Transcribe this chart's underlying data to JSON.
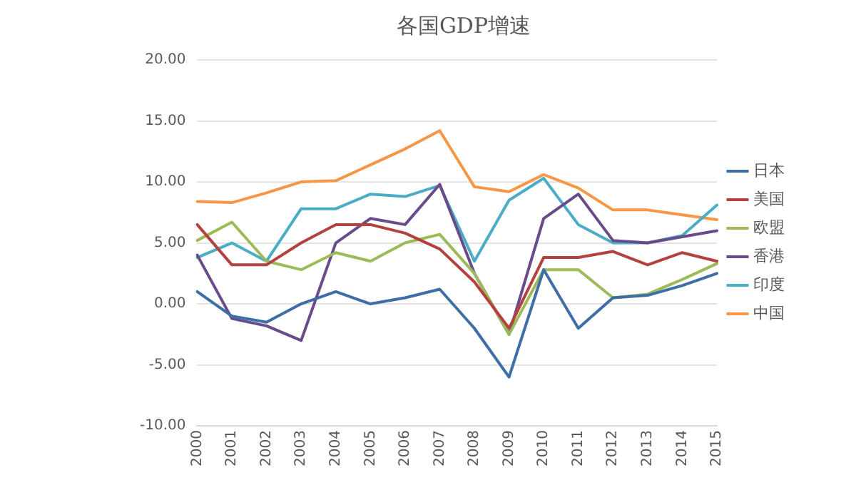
{
  "chart_data": {
    "type": "line",
    "title": "各国GDP增速",
    "categories": [
      "2000",
      "2001",
      "2002",
      "2003",
      "2004",
      "2005",
      "2006",
      "2007",
      "2008",
      "2009",
      "2010",
      "2011",
      "2012",
      "2013",
      "2014",
      "2015"
    ],
    "series": [
      {
        "name": "日本",
        "color": "#3e6ea6",
        "values": [
          1,
          -1,
          -1.5,
          0,
          1,
          0,
          0.5,
          1.2,
          -2,
          -6,
          2.8,
          -2,
          0.5,
          0.7,
          1.5,
          2.5
        ]
      },
      {
        "name": "美国",
        "color": "#b5413e",
        "values": [
          6.5,
          3.2,
          3.2,
          5,
          6.5,
          6.5,
          5.8,
          4.5,
          1.8,
          -2,
          3.8,
          3.8,
          4.3,
          3.2,
          4.2,
          3.5
        ]
      },
      {
        "name": "欧盟",
        "color": "#9bbb59",
        "values": [
          5.2,
          6.7,
          3.5,
          2.8,
          4.2,
          3.5,
          5,
          5.7,
          2.5,
          -2.5,
          2.8,
          2.8,
          0.5,
          0.8,
          2,
          3.3
        ]
      },
      {
        "name": "香港",
        "color": "#6a4a8a",
        "values": [
          4,
          -1.2,
          -1.8,
          -3,
          5,
          7,
          6.5,
          9.8,
          2.5,
          -2.5,
          7,
          9,
          5.2,
          5,
          5.5,
          6
        ]
      },
      {
        "name": "印度",
        "color": "#4bacc6",
        "values": [
          3.8,
          5,
          3.5,
          7.8,
          7.8,
          9,
          8.8,
          9.7,
          3.5,
          8.5,
          10.3,
          6.5,
          5,
          5,
          5.6,
          8.1
        ]
      },
      {
        "name": "中国",
        "color": "#f79646",
        "values": [
          8.4,
          8.3,
          9.1,
          10,
          10.1,
          11.4,
          12.7,
          14.2,
          9.6,
          9.2,
          10.6,
          9.5,
          7.7,
          7.7,
          7.3,
          6.9
        ]
      }
    ],
    "ylim": [
      -10,
      20
    ],
    "yticks": [
      {
        "value": -10,
        "label": "-10.00"
      },
      {
        "value": -5,
        "label": "-5.00"
      },
      {
        "value": 0,
        "label": "0.00"
      },
      {
        "value": 5,
        "label": "5.00"
      },
      {
        "value": 10,
        "label": "10.00"
      },
      {
        "value": 15,
        "label": "15.00"
      },
      {
        "value": 20,
        "label": "20.00"
      }
    ],
    "grid": "y",
    "legend": "right",
    "marker": "none",
    "line_style": "solid"
  }
}
